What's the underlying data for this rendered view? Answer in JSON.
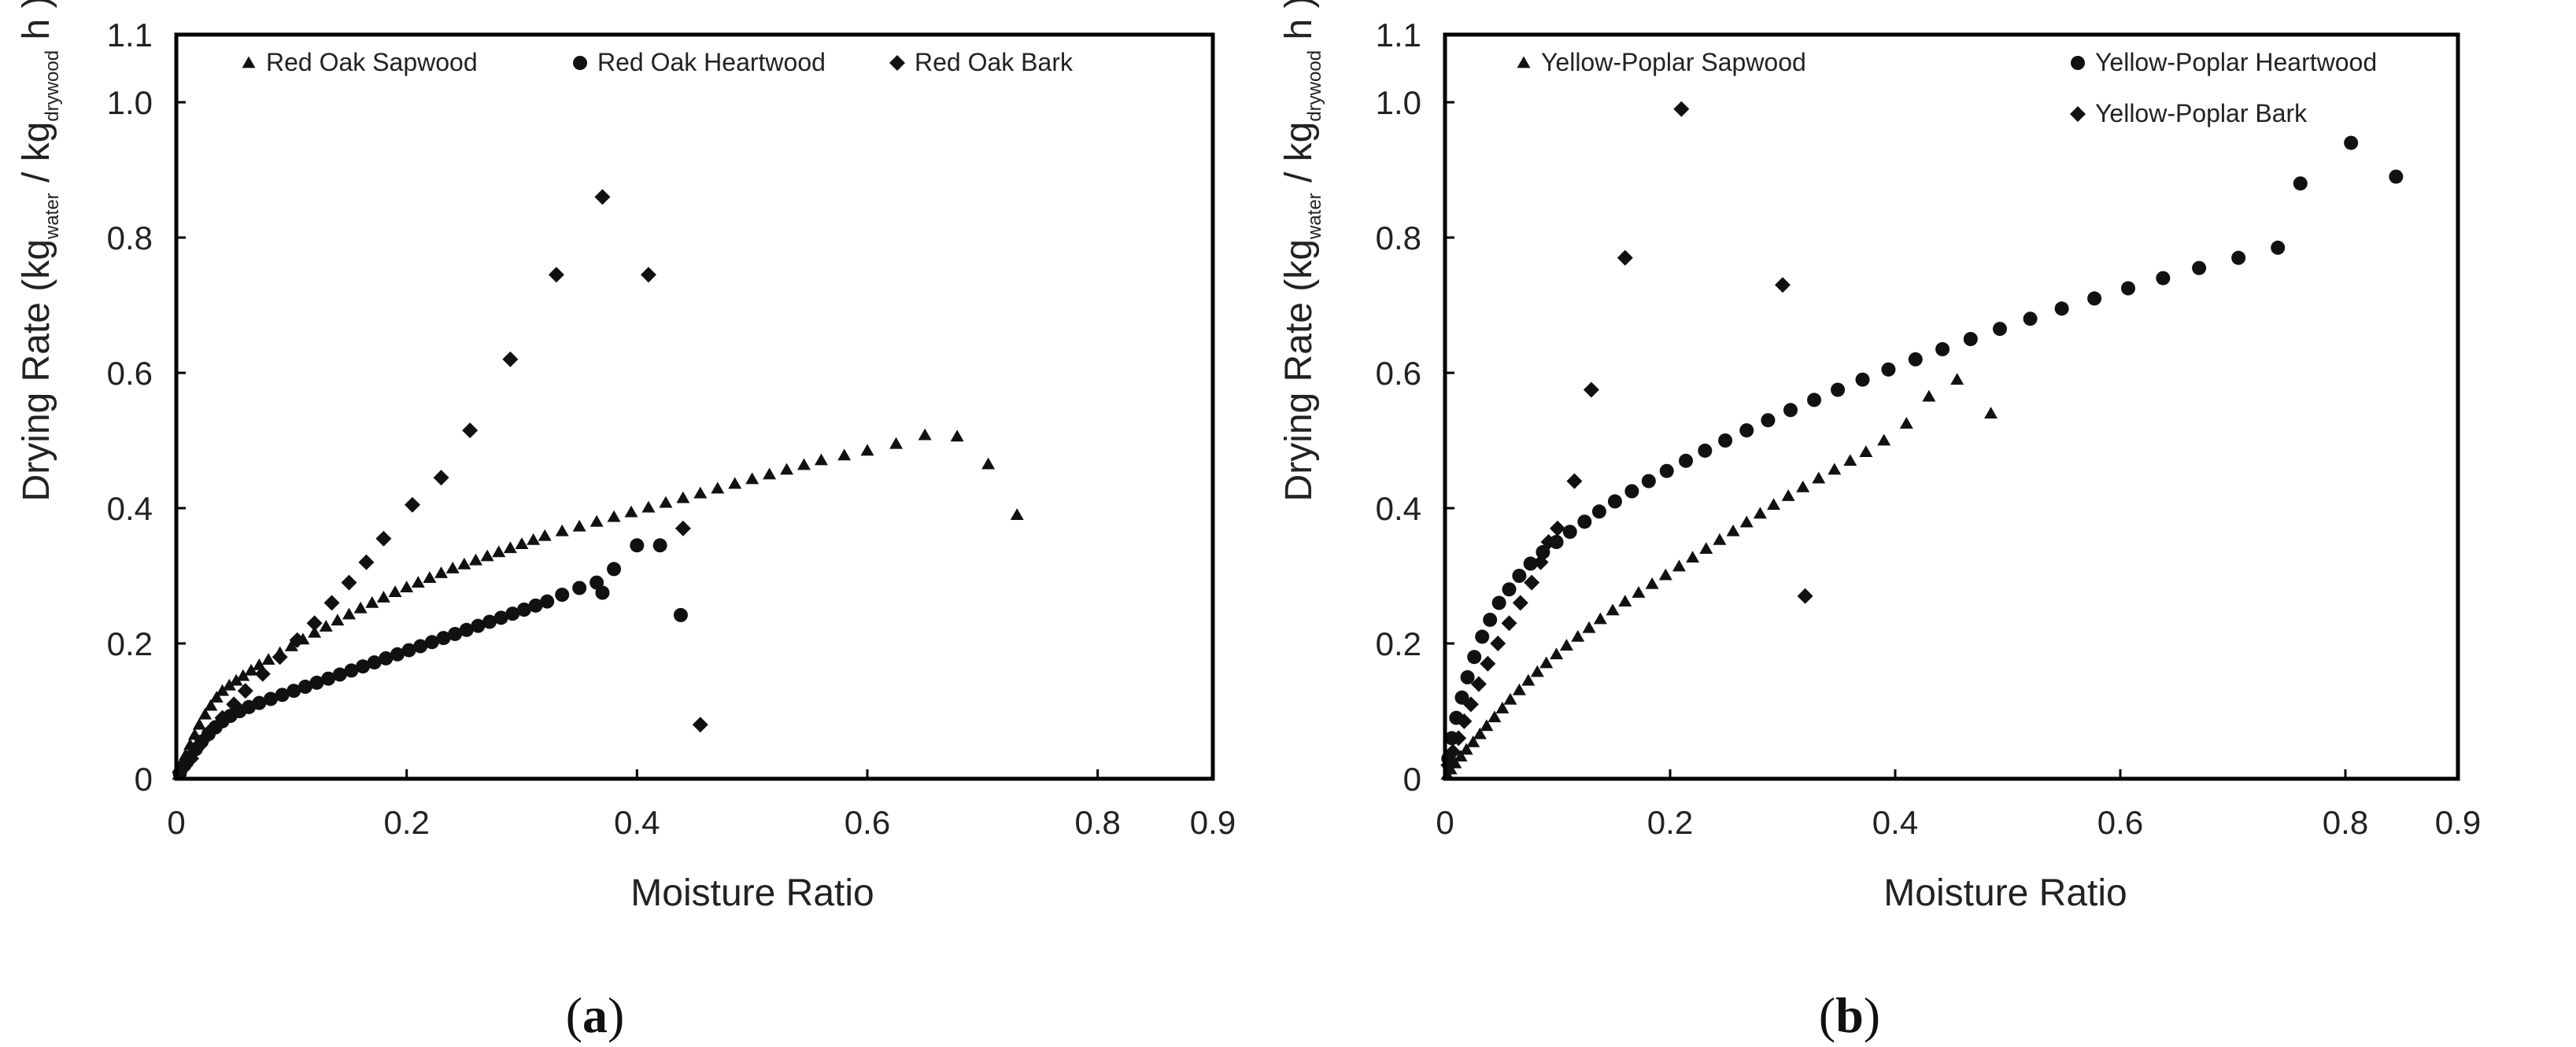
{
  "chart_data": [
    {
      "panel": "a",
      "panel_label": {
        "open": "(",
        "letter": "a",
        "close": ")"
      },
      "type": "scatter",
      "xlabel": "Moisture Ratio",
      "ylabel": {
        "prefix": "Drying Rate (kg",
        "sub1": "water",
        "mid": " / kg",
        "sub2": "drywood",
        "suffix": " h )"
      },
      "xlim": [
        0,
        0.9
      ],
      "ylim": [
        0,
        1.1
      ],
      "xticks": [
        0,
        0.2,
        0.4,
        0.6,
        0.8,
        0.9
      ],
      "xtick_labels": [
        "0",
        "0.2",
        "0.4",
        "0.6",
        "0.8",
        "0.9"
      ],
      "yticks": [
        0,
        0.2,
        0.4,
        0.6,
        0.8,
        1.0,
        1.1
      ],
      "ytick_labels": [
        "0",
        "0.2",
        "0.4",
        "0.6",
        "0.8",
        "1.0",
        "1.1"
      ],
      "grid": false,
      "series": [
        {
          "name": "Red Oak Sapwood",
          "marker": "triangle",
          "points": [
            [
              0.002,
              0.006
            ],
            [
              0.005,
              0.02
            ],
            [
              0.008,
              0.035
            ],
            [
              0.012,
              0.05
            ],
            [
              0.016,
              0.065
            ],
            [
              0.02,
              0.08
            ],
            [
              0.025,
              0.095
            ],
            [
              0.03,
              0.108
            ],
            [
              0.035,
              0.12
            ],
            [
              0.04,
              0.13
            ],
            [
              0.046,
              0.138
            ],
            [
              0.052,
              0.145
            ],
            [
              0.058,
              0.152
            ],
            [
              0.065,
              0.16
            ],
            [
              0.072,
              0.168
            ],
            [
              0.08,
              0.176
            ],
            [
              0.09,
              0.186
            ],
            [
              0.1,
              0.196
            ],
            [
              0.11,
              0.206
            ],
            [
              0.12,
              0.216
            ],
            [
              0.13,
              0.225
            ],
            [
              0.14,
              0.234
            ],
            [
              0.15,
              0.243
            ],
            [
              0.16,
              0.252
            ],
            [
              0.17,
              0.26
            ],
            [
              0.18,
              0.268
            ],
            [
              0.19,
              0.276
            ],
            [
              0.2,
              0.283
            ],
            [
              0.21,
              0.29
            ],
            [
              0.22,
              0.297
            ],
            [
              0.23,
              0.304
            ],
            [
              0.24,
              0.311
            ],
            [
              0.25,
              0.317
            ],
            [
              0.26,
              0.323
            ],
            [
              0.27,
              0.329
            ],
            [
              0.28,
              0.335
            ],
            [
              0.29,
              0.341
            ],
            [
              0.3,
              0.347
            ],
            [
              0.31,
              0.353
            ],
            [
              0.32,
              0.359
            ],
            [
              0.335,
              0.366
            ],
            [
              0.35,
              0.373
            ],
            [
              0.365,
              0.38
            ],
            [
              0.38,
              0.387
            ],
            [
              0.395,
              0.394
            ],
            [
              0.41,
              0.401
            ],
            [
              0.425,
              0.408
            ],
            [
              0.44,
              0.415
            ],
            [
              0.455,
              0.422
            ],
            [
              0.47,
              0.429
            ],
            [
              0.485,
              0.436
            ],
            [
              0.5,
              0.443
            ],
            [
              0.515,
              0.45
            ],
            [
              0.53,
              0.457
            ],
            [
              0.545,
              0.464
            ],
            [
              0.56,
              0.471
            ],
            [
              0.58,
              0.478
            ],
            [
              0.6,
              0.485
            ],
            [
              0.625,
              0.495
            ],
            [
              0.65,
              0.508
            ],
            [
              0.678,
              0.506
            ],
            [
              0.705,
              0.465
            ],
            [
              0.73,
              0.39
            ]
          ]
        },
        {
          "name": "Red Oak Heartwood",
          "marker": "circle",
          "points": [
            [
              0.003,
              0.008
            ],
            [
              0.007,
              0.02
            ],
            [
              0.012,
              0.032
            ],
            [
              0.017,
              0.044
            ],
            [
              0.022,
              0.055
            ],
            [
              0.028,
              0.066
            ],
            [
              0.034,
              0.076
            ],
            [
              0.04,
              0.085
            ],
            [
              0.047,
              0.093
            ],
            [
              0.055,
              0.1
            ],
            [
              0.063,
              0.106
            ],
            [
              0.072,
              0.112
            ],
            [
              0.082,
              0.118
            ],
            [
              0.092,
              0.124
            ],
            [
              0.102,
              0.13
            ],
            [
              0.112,
              0.136
            ],
            [
              0.122,
              0.142
            ],
            [
              0.132,
              0.148
            ],
            [
              0.142,
              0.154
            ],
            [
              0.152,
              0.16
            ],
            [
              0.162,
              0.166
            ],
            [
              0.172,
              0.172
            ],
            [
              0.182,
              0.178
            ],
            [
              0.192,
              0.184
            ],
            [
              0.202,
              0.19
            ],
            [
              0.212,
              0.196
            ],
            [
              0.222,
              0.202
            ],
            [
              0.232,
              0.208
            ],
            [
              0.242,
              0.214
            ],
            [
              0.252,
              0.22
            ],
            [
              0.262,
              0.226
            ],
            [
              0.272,
              0.232
            ],
            [
              0.282,
              0.238
            ],
            [
              0.292,
              0.244
            ],
            [
              0.302,
              0.25
            ],
            [
              0.312,
              0.256
            ],
            [
              0.322,
              0.262
            ],
            [
              0.335,
              0.272
            ],
            [
              0.35,
              0.282
            ],
            [
              0.365,
              0.29
            ],
            [
              0.37,
              0.275
            ],
            [
              0.38,
              0.31
            ],
            [
              0.4,
              0.345
            ],
            [
              0.42,
              0.345
            ],
            [
              0.438,
              0.242
            ]
          ]
        },
        {
          "name": "Red Oak Bark",
          "marker": "diamond",
          "points": [
            [
              0.003,
              0.01
            ],
            [
              0.008,
              0.02
            ],
            [
              0.013,
              0.03
            ],
            [
              0.018,
              0.045
            ],
            [
              0.025,
              0.06
            ],
            [
              0.032,
              0.075
            ],
            [
              0.04,
              0.09
            ],
            [
              0.05,
              0.11
            ],
            [
              0.06,
              0.13
            ],
            [
              0.075,
              0.155
            ],
            [
              0.09,
              0.18
            ],
            [
              0.105,
              0.205
            ],
            [
              0.12,
              0.23
            ],
            [
              0.135,
              0.26
            ],
            [
              0.15,
              0.29
            ],
            [
              0.165,
              0.32
            ],
            [
              0.18,
              0.355
            ],
            [
              0.205,
              0.405
            ],
            [
              0.23,
              0.445
            ],
            [
              0.255,
              0.515
            ],
            [
              0.29,
              0.62
            ],
            [
              0.33,
              0.745
            ],
            [
              0.37,
              0.86
            ],
            [
              0.41,
              0.745
            ],
            [
              0.44,
              0.37
            ],
            [
              0.455,
              0.08
            ]
          ]
        }
      ]
    },
    {
      "panel": "b",
      "panel_label": {
        "open": "(",
        "letter": "b",
        "close": ")"
      },
      "type": "scatter",
      "xlabel": "Moisture Ratio",
      "ylabel": {
        "prefix": "Drying Rate (kg",
        "sub1": "water",
        "mid": " / kg",
        "sub2": "drywood",
        "suffix": " h )"
      },
      "xlim": [
        0,
        0.9
      ],
      "ylim": [
        0,
        1.1
      ],
      "xticks": [
        0,
        0.2,
        0.4,
        0.6,
        0.8,
        0.9
      ],
      "xtick_labels": [
        "0",
        "0.2",
        "0.4",
        "0.6",
        "0.8",
        "0.9"
      ],
      "yticks": [
        0,
        0.2,
        0.4,
        0.6,
        0.8,
        1.0,
        1.1
      ],
      "ytick_labels": [
        "0",
        "0.2",
        "0.4",
        "0.6",
        "0.8",
        "1.0",
        "1.1"
      ],
      "grid": false,
      "series": [
        {
          "name": "Yellow-Poplar Sapwood",
          "marker": "triangle",
          "points": [
            [
              0.002,
              0.006
            ],
            [
              0.005,
              0.014
            ],
            [
              0.009,
              0.023
            ],
            [
              0.014,
              0.033
            ],
            [
              0.019,
              0.043
            ],
            [
              0.025,
              0.054
            ],
            [
              0.031,
              0.066
            ],
            [
              0.037,
              0.078
            ],
            [
              0.044,
              0.091
            ],
            [
              0.051,
              0.104
            ],
            [
              0.058,
              0.117
            ],
            [
              0.066,
              0.131
            ],
            [
              0.074,
              0.145
            ],
            [
              0.082,
              0.158
            ],
            [
              0.09,
              0.171
            ],
            [
              0.099,
              0.184
            ],
            [
              0.108,
              0.197
            ],
            [
              0.118,
              0.21
            ],
            [
              0.128,
              0.223
            ],
            [
              0.138,
              0.236
            ],
            [
              0.149,
              0.249
            ],
            [
              0.16,
              0.262
            ],
            [
              0.172,
              0.275
            ],
            [
              0.184,
              0.288
            ],
            [
              0.196,
              0.301
            ],
            [
              0.208,
              0.314
            ],
            [
              0.22,
              0.327
            ],
            [
              0.232,
              0.34
            ],
            [
              0.244,
              0.353
            ],
            [
              0.256,
              0.366
            ],
            [
              0.268,
              0.379
            ],
            [
              0.28,
              0.392
            ],
            [
              0.292,
              0.405
            ],
            [
              0.305,
              0.418
            ],
            [
              0.318,
              0.431
            ],
            [
              0.332,
              0.444
            ],
            [
              0.346,
              0.457
            ],
            [
              0.36,
              0.47
            ],
            [
              0.374,
              0.483
            ],
            [
              0.39,
              0.5
            ],
            [
              0.41,
              0.525
            ],
            [
              0.43,
              0.565
            ],
            [
              0.455,
              0.59
            ],
            [
              0.485,
              0.54
            ]
          ]
        },
        {
          "name": "Yellow-Poplar Heartwood",
          "marker": "circle",
          "points": [
            [
              0.003,
              0.03
            ],
            [
              0.006,
              0.06
            ],
            [
              0.01,
              0.09
            ],
            [
              0.015,
              0.12
            ],
            [
              0.02,
              0.15
            ],
            [
              0.026,
              0.18
            ],
            [
              0.033,
              0.21
            ],
            [
              0.04,
              0.235
            ],
            [
              0.048,
              0.26
            ],
            [
              0.057,
              0.28
            ],
            [
              0.066,
              0.3
            ],
            [
              0.076,
              0.318
            ],
            [
              0.087,
              0.335
            ],
            [
              0.099,
              0.35
            ],
            [
              0.111,
              0.365
            ],
            [
              0.124,
              0.38
            ],
            [
              0.137,
              0.395
            ],
            [
              0.151,
              0.41
            ],
            [
              0.166,
              0.425
            ],
            [
              0.181,
              0.44
            ],
            [
              0.197,
              0.455
            ],
            [
              0.214,
              0.47
            ],
            [
              0.231,
              0.485
            ],
            [
              0.249,
              0.5
            ],
            [
              0.268,
              0.515
            ],
            [
              0.287,
              0.53
            ],
            [
              0.307,
              0.545
            ],
            [
              0.328,
              0.56
            ],
            [
              0.349,
              0.575
            ],
            [
              0.371,
              0.59
            ],
            [
              0.394,
              0.605
            ],
            [
              0.418,
              0.62
            ],
            [
              0.442,
              0.635
            ],
            [
              0.467,
              0.65
            ],
            [
              0.493,
              0.665
            ],
            [
              0.52,
              0.68
            ],
            [
              0.548,
              0.695
            ],
            [
              0.577,
              0.71
            ],
            [
              0.607,
              0.725
            ],
            [
              0.638,
              0.74
            ],
            [
              0.67,
              0.755
            ],
            [
              0.705,
              0.77
            ],
            [
              0.74,
              0.785
            ],
            [
              0.76,
              0.88
            ],
            [
              0.805,
              0.94
            ],
            [
              0.845,
              0.89
            ]
          ]
        },
        {
          "name": "Yellow-Poplar Bark",
          "marker": "diamond",
          "points": [
            [
              0.003,
              0.02
            ],
            [
              0.007,
              0.04
            ],
            [
              0.012,
              0.06
            ],
            [
              0.017,
              0.085
            ],
            [
              0.023,
              0.11
            ],
            [
              0.03,
              0.14
            ],
            [
              0.038,
              0.17
            ],
            [
              0.047,
              0.2
            ],
            [
              0.057,
              0.23
            ],
            [
              0.067,
              0.26
            ],
            [
              0.077,
              0.29
            ],
            [
              0.085,
              0.32
            ],
            [
              0.092,
              0.35
            ],
            [
              0.1,
              0.37
            ],
            [
              0.115,
              0.44
            ],
            [
              0.13,
              0.575
            ],
            [
              0.16,
              0.77
            ],
            [
              0.21,
              0.99
            ],
            [
              0.3,
              0.73
            ],
            [
              0.32,
              0.27
            ]
          ]
        }
      ]
    }
  ]
}
